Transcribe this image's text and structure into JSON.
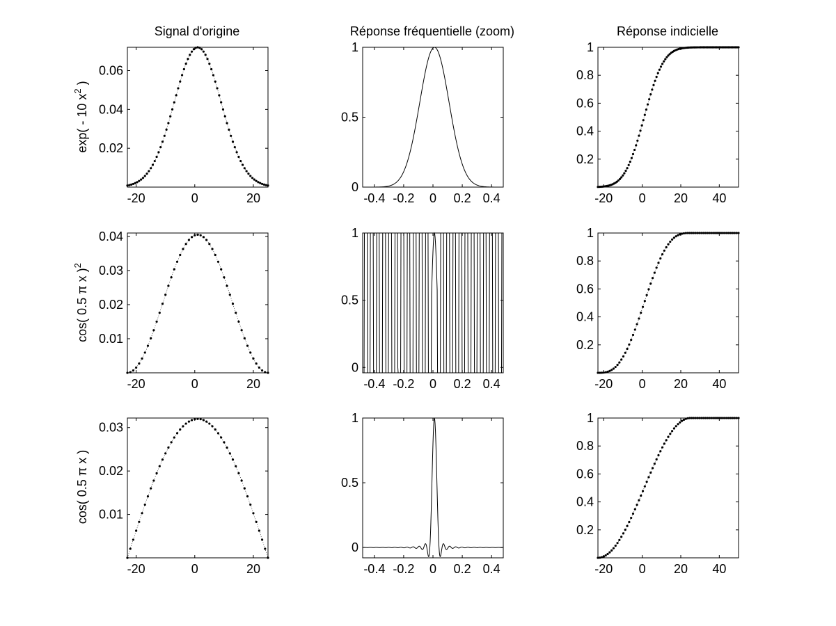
{
  "window": {
    "title": ""
  },
  "figure": {
    "columns": [
      {
        "title": "Signal d'origine"
      },
      {
        "title": "Réponse fréquentielle (zoom)"
      },
      {
        "title": "Réponse indicielle"
      }
    ],
    "rows": [
      {
        "ylabel": "exp( - 10 x",
        "ylabel_sup": "2",
        "ylabel_tail": " )"
      },
      {
        "ylabel": "cos( 0.5 π x )",
        "ylabel_sup": "2",
        "ylabel_tail": ""
      },
      {
        "ylabel": "cos( 0.5 π x )",
        "ylabel_sup": "",
        "ylabel_tail": ""
      }
    ]
  },
  "chart_data": [
    {
      "type": "scatter",
      "row": 0,
      "col": 0,
      "marker": "dot",
      "xlim": [
        -23,
        25
      ],
      "ylim": [
        0,
        0.072
      ],
      "xticks": [
        -20,
        0,
        20
      ],
      "xticklabels": [
        "-20",
        "0",
        "20"
      ],
      "yticks": [
        0.02,
        0.04,
        0.06
      ],
      "yticklabels": [
        "0.02",
        "0.04",
        "0.06"
      ],
      "series": [
        {
          "kernel": "gaussian",
          "x_start": -23,
          "x_end": 25,
          "n": 73,
          "center": 1,
          "width": 8,
          "peak": 0.072
        }
      ]
    },
    {
      "type": "line",
      "row": 0,
      "col": 1,
      "xlim": [
        -0.48,
        0.48
      ],
      "ylim": [
        0,
        1
      ],
      "xticks": [
        -0.4,
        -0.2,
        0,
        0.2,
        0.4
      ],
      "xticklabels": [
        "-0.4",
        "-0.2",
        "0",
        "0.2",
        "0.4"
      ],
      "yticks": [
        0,
        0.5,
        1
      ],
      "yticklabels": [
        "0",
        "0.5",
        "1"
      ],
      "series": [
        {
          "kernel": "gauss_freq",
          "center": 0.01,
          "width": 0.1
        }
      ]
    },
    {
      "type": "scatter",
      "row": 0,
      "col": 2,
      "marker": "dot",
      "xlim": [
        -23,
        50
      ],
      "ylim": [
        0,
        1
      ],
      "xticks": [
        -20,
        0,
        20,
        40
      ],
      "xticklabels": [
        "-20",
        "0",
        "20",
        "40"
      ],
      "yticks": [
        0.2,
        0.4,
        0.6,
        0.8,
        1
      ],
      "yticklabels": [
        "0.2",
        "0.4",
        "0.6",
        "0.8",
        "1"
      ],
      "series": [
        {
          "kernel": "step",
          "x_start": -23,
          "x_end": 50,
          "n": 97,
          "center": 1,
          "width": 8
        }
      ]
    },
    {
      "type": "scatter",
      "row": 1,
      "col": 0,
      "marker": "dot",
      "xlim": [
        -23,
        25
      ],
      "ylim": [
        0,
        0.041
      ],
      "xticks": [
        -20,
        0,
        20
      ],
      "xticklabels": [
        "-20",
        "0",
        "20"
      ],
      "yticks": [
        0.01,
        0.02,
        0.03,
        0.04
      ],
      "yticklabels": [
        "0.01",
        "0.02",
        "0.03",
        "0.04"
      ],
      "series": [
        {
          "kernel": "cos2",
          "x_start": -23,
          "x_end": 25,
          "n": 49,
          "center": 1,
          "halfwidth": 24,
          "peak": 0.0405
        }
      ]
    },
    {
      "type": "line",
      "row": 1,
      "col": 1,
      "xlim": [
        -0.48,
        0.48
      ],
      "ylim": [
        -0.04,
        1
      ],
      "xticks": [
        -0.4,
        -0.2,
        0,
        0.2,
        0.4
      ],
      "xticklabels": [
        "-0.4",
        "-0.2",
        "0",
        "0.2",
        "0.4"
      ],
      "yticks": [
        0,
        0.5,
        1
      ],
      "yticklabels": [
        "0",
        "0.5",
        "1"
      ],
      "series": [
        {
          "kernel": "cos2_freq",
          "center": 0.01,
          "halfwidth": 24
        }
      ]
    },
    {
      "type": "scatter",
      "row": 1,
      "col": 2,
      "marker": "dot",
      "xlim": [
        -23,
        50
      ],
      "ylim": [
        0,
        1
      ],
      "xticks": [
        -20,
        0,
        20,
        40
      ],
      "xticklabels": [
        "-20",
        "0",
        "20",
        "40"
      ],
      "yticks": [
        0.2,
        0.4,
        0.6,
        0.8,
        1
      ],
      "yticklabels": [
        "0.2",
        "0.4",
        "0.6",
        "0.8",
        "1"
      ],
      "series": [
        {
          "kernel": "cos2_step",
          "x_start": -23,
          "x_end": 50,
          "n": 73,
          "center": 1,
          "halfwidth": 24
        }
      ]
    },
    {
      "type": "scatter",
      "row": 2,
      "col": 0,
      "marker": "dot",
      "xlim": [
        -23,
        25
      ],
      "ylim": [
        0,
        0.0322
      ],
      "xticks": [
        -20,
        0,
        20
      ],
      "xticklabels": [
        "-20",
        "0",
        "20"
      ],
      "yticks": [
        0.01,
        0.02,
        0.03
      ],
      "yticklabels": [
        "0.01",
        "0.02",
        "0.03"
      ],
      "series": [
        {
          "kernel": "cos",
          "x_start": -23,
          "x_end": 25,
          "n": 49,
          "center": 1,
          "halfwidth": 24,
          "peak": 0.032
        }
      ]
    },
    {
      "type": "line",
      "row": 2,
      "col": 1,
      "xlim": [
        -0.48,
        0.48
      ],
      "ylim": [
        -0.08,
        1
      ],
      "xticks": [
        -0.4,
        -0.2,
        0,
        0.2,
        0.4
      ],
      "xticklabels": [
        "-0.4",
        "-0.2",
        "0",
        "0.2",
        "0.4"
      ],
      "yticks": [
        0,
        0.5,
        1
      ],
      "yticklabels": [
        "0",
        "0.5",
        "1"
      ],
      "series": [
        {
          "kernel": "cos_freq",
          "center": 0.01,
          "halfwidth": 24
        }
      ]
    },
    {
      "type": "scatter",
      "row": 2,
      "col": 2,
      "marker": "dot",
      "xlim": [
        -23,
        50
      ],
      "ylim": [
        0,
        1
      ],
      "xticks": [
        -20,
        0,
        20,
        40
      ],
      "xticklabels": [
        "-20",
        "0",
        "20",
        "40"
      ],
      "yticks": [
        0.2,
        0.4,
        0.6,
        0.8,
        1
      ],
      "yticklabels": [
        "0.2",
        "0.4",
        "0.6",
        "0.8",
        "1"
      ],
      "series": [
        {
          "kernel": "cos_step",
          "x_start": -23,
          "x_end": 50,
          "n": 73,
          "center": 1,
          "halfwidth": 24
        }
      ]
    }
  ]
}
